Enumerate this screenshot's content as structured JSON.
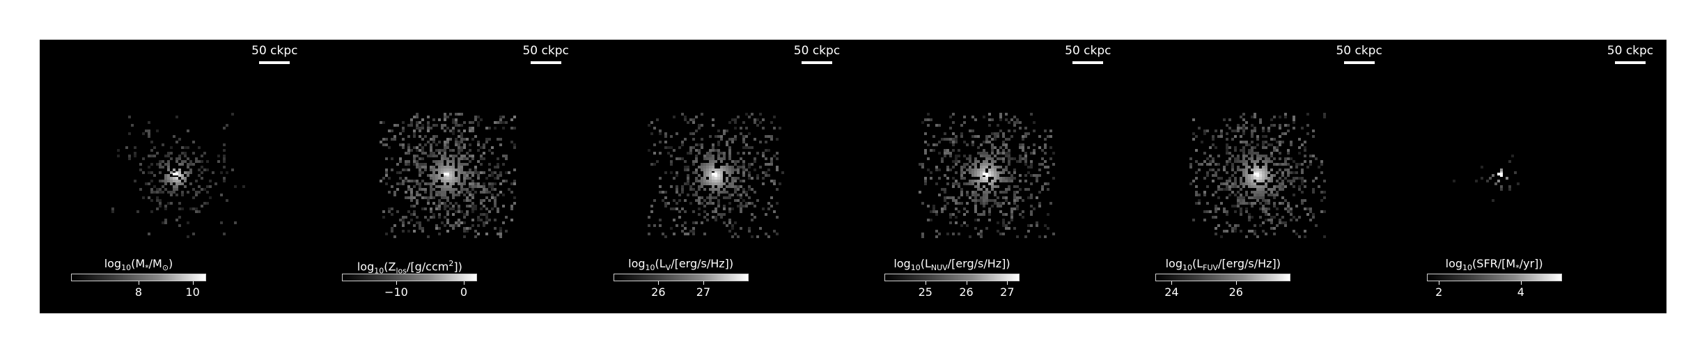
{
  "panels": [
    {
      "id": "stellar-mass",
      "scale_label": "50 ckpc",
      "colorbar": {
        "prefix": "log",
        "sub": "10",
        "body": "(M",
        "sub2": "*",
        "body2": "/M",
        "sub3": "⊙",
        "body3": ")"
      },
      "colorbar_range": [
        5.5,
        10.5
      ],
      "ticks": [
        {
          "value": 8,
          "label": "8"
        },
        {
          "value": 10,
          "label": "10"
        }
      ],
      "map": {
        "spread": 0.55,
        "core": 1.0,
        "halo": 0.35
      }
    },
    {
      "id": "metallicity",
      "scale_label": "50 ckpc",
      "colorbar": {
        "prefix": "log",
        "sub": "10",
        "body": "(Z",
        "sub2": "los",
        "body2": "/[g/ccm",
        "sup": "2",
        "body3": "])"
      },
      "colorbar_range": [
        -18,
        2
      ],
      "ticks": [
        {
          "value": -10,
          "label": "−10"
        },
        {
          "value": 0,
          "label": "0"
        }
      ],
      "map": {
        "spread": 1.0,
        "core": 0.85,
        "halo": 0.65
      }
    },
    {
      "id": "v-band-luminosity",
      "scale_label": "50 ckpc",
      "colorbar": {
        "prefix": "log",
        "sub": "10",
        "body": "(L",
        "sub2": "V",
        "body2": "/[erg/s/Hz])"
      },
      "colorbar_range": [
        25.0,
        28.0
      ],
      "ticks": [
        {
          "value": 26,
          "label": "26"
        },
        {
          "value": 27,
          "label": "27"
        }
      ],
      "map": {
        "spread": 0.85,
        "core": 1.0,
        "halo": 0.5
      }
    },
    {
      "id": "nuv-luminosity",
      "scale_label": "50 ckpc",
      "colorbar": {
        "prefix": "log",
        "sub": "10",
        "body": "(L",
        "sub2": "NUV",
        "body2": "/[erg/s/Hz])"
      },
      "colorbar_range": [
        24.0,
        27.3
      ],
      "ticks": [
        {
          "value": 25,
          "label": "25"
        },
        {
          "value": 26,
          "label": "26"
        },
        {
          "value": 27,
          "label": "27"
        }
      ],
      "map": {
        "spread": 0.9,
        "core": 1.0,
        "halo": 0.55
      }
    },
    {
      "id": "fuv-luminosity",
      "scale_label": "50 ckpc",
      "colorbar": {
        "prefix": "log",
        "sub": "10",
        "body": "(L",
        "sub2": "FUV",
        "body2": "/[erg/s/Hz])"
      },
      "colorbar_range": [
        23.5,
        27.7
      ],
      "ticks": [
        {
          "value": 24,
          "label": "24"
        },
        {
          "value": 26,
          "label": "26"
        }
      ],
      "map": {
        "spread": 0.9,
        "core": 1.0,
        "halo": 0.55
      }
    },
    {
      "id": "star-formation-rate",
      "scale_label": "50 ckpc",
      "colorbar": {
        "prefix": "log",
        "sub": "10",
        "body": "(SFR/[M",
        "sub2": "*",
        "body2": "/yr])"
      },
      "colorbar_range": [
        1.7,
        5.0
      ],
      "ticks": [
        {
          "value": 2,
          "label": "2"
        },
        {
          "value": 4,
          "label": "4"
        }
      ],
      "map": {
        "spread": 0.18,
        "core": 1.0,
        "halo": 0.0
      }
    }
  ]
}
